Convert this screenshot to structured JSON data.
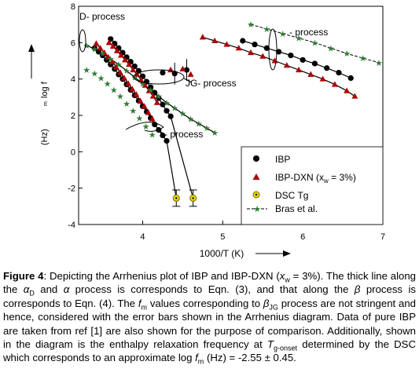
{
  "chart_data": {
    "type": "scatter",
    "xlabel": "1000/T (K)",
    "ylabel": "log f",
    "ylabel_superscript": "m",
    "yunit": "(Hz)",
    "xlim": [
      3.2,
      7.0
    ],
    "ylim": [
      -4,
      8
    ],
    "xticks": [
      "4",
      "5",
      "6",
      "7"
    ],
    "yticks": [
      "-4",
      "-2",
      "0",
      "2",
      "4",
      "6",
      "8"
    ],
    "grid": false,
    "legend_position": "bottom-right",
    "annotations": {
      "d_process": "D- process",
      "beta_process": "- process",
      "jg_process": "JG- process",
      "alpha_process": "- process"
    },
    "series": [
      {
        "name": "IBP",
        "marker": "circle",
        "color": "#000000",
        "points": [
          [
            3.4,
            5.7
          ],
          [
            3.45,
            5.5
          ],
          [
            3.5,
            5.3
          ],
          [
            3.55,
            5.05
          ],
          [
            3.6,
            4.8
          ],
          [
            3.65,
            4.55
          ],
          [
            3.7,
            4.25
          ],
          [
            3.75,
            4.0
          ],
          [
            3.8,
            3.7
          ],
          [
            3.85,
            3.4
          ],
          [
            3.9,
            3.1
          ],
          [
            3.95,
            2.8
          ],
          [
            4.0,
            2.5
          ],
          [
            4.05,
            2.2
          ],
          [
            4.1,
            1.85
          ],
          [
            4.15,
            1.5
          ],
          [
            4.2,
            1.2
          ],
          [
            4.25,
            0.9
          ],
          [
            4.3,
            0.6
          ],
          [
            3.6,
            6.2
          ],
          [
            3.65,
            5.95
          ],
          [
            3.7,
            5.7
          ],
          [
            3.75,
            5.45
          ],
          [
            3.8,
            5.2
          ],
          [
            3.85,
            4.95
          ],
          [
            3.9,
            4.7
          ],
          [
            3.95,
            4.45
          ],
          [
            4.0,
            4.15
          ],
          [
            4.05,
            3.85
          ],
          [
            4.1,
            3.55
          ],
          [
            4.15,
            3.25
          ],
          [
            4.2,
            2.95
          ],
          [
            4.25,
            2.6
          ],
          [
            4.3,
            2.25
          ],
          [
            4.35,
            1.95
          ],
          [
            4.25,
            4.35
          ],
          [
            4.4,
            4.3
          ],
          [
            4.55,
            4.5
          ],
          [
            5.25,
            6.1
          ],
          [
            5.4,
            5.9
          ],
          [
            5.55,
            5.7
          ],
          [
            5.7,
            5.5
          ],
          [
            5.85,
            5.3
          ],
          [
            6.0,
            5.05
          ],
          [
            6.15,
            4.85
          ],
          [
            6.3,
            4.6
          ],
          [
            6.45,
            4.35
          ],
          [
            6.6,
            4.05
          ]
        ]
      },
      {
        "name": "IBP-DXN",
        "legend_text": "IBP-DXN (x",
        "legend_sub": "w",
        "legend_suffix": " = 3%)",
        "marker": "triangle",
        "color": "#b00000",
        "points": [
          [
            3.42,
            5.95
          ],
          [
            3.47,
            5.7
          ],
          [
            3.52,
            5.45
          ],
          [
            3.57,
            5.2
          ],
          [
            3.62,
            4.95
          ],
          [
            3.67,
            4.65
          ],
          [
            3.72,
            4.35
          ],
          [
            3.77,
            4.05
          ],
          [
            3.82,
            3.75
          ],
          [
            3.87,
            3.45
          ],
          [
            3.92,
            3.15
          ],
          [
            3.97,
            2.8
          ],
          [
            4.02,
            2.5
          ],
          [
            4.07,
            2.15
          ],
          [
            4.12,
            1.8
          ],
          [
            3.58,
            6.0
          ],
          [
            3.63,
            5.8
          ],
          [
            3.68,
            5.55
          ],
          [
            3.73,
            5.3
          ],
          [
            3.78,
            5.05
          ],
          [
            3.83,
            4.8
          ],
          [
            3.88,
            4.5
          ],
          [
            3.93,
            4.25
          ],
          [
            3.98,
            3.95
          ],
          [
            4.03,
            3.65
          ],
          [
            4.08,
            3.35
          ],
          [
            4.13,
            3.05
          ],
          [
            4.18,
            2.7
          ],
          [
            4.35,
            4.5
          ],
          [
            4.5,
            4.55
          ],
          [
            4.6,
            4.25
          ],
          [
            4.75,
            6.3
          ],
          [
            4.9,
            6.1
          ],
          [
            5.05,
            5.9
          ],
          [
            5.2,
            5.7
          ],
          [
            5.35,
            5.45
          ],
          [
            5.5,
            5.25
          ],
          [
            5.65,
            5.0
          ],
          [
            5.8,
            4.75
          ],
          [
            5.95,
            4.5
          ],
          [
            6.1,
            4.25
          ],
          [
            6.25,
            4.0
          ],
          [
            6.4,
            3.7
          ],
          [
            6.55,
            3.35
          ],
          [
            6.65,
            3.05
          ]
        ]
      },
      {
        "name": "DSC Tg",
        "legend_text": "DSC Tg",
        "marker": "circle-open",
        "color": "#e8d800",
        "points": [
          [
            4.42,
            -2.55
          ],
          [
            4.63,
            -2.55
          ]
        ],
        "y_error": 0.45
      },
      {
        "name": "Bras et al.",
        "marker": "star",
        "color": "#2e7d32",
        "points": [
          [
            3.3,
            4.5
          ],
          [
            3.4,
            4.3
          ],
          [
            3.48,
            4.05
          ],
          [
            3.56,
            3.75
          ],
          [
            3.64,
            3.4
          ],
          [
            3.72,
            3.05
          ],
          [
            3.8,
            2.65
          ],
          [
            3.88,
            2.25
          ],
          [
            3.96,
            1.85
          ],
          [
            4.04,
            1.4
          ],
          [
            4.12,
            0.95
          ],
          [
            3.3,
            5.85
          ],
          [
            3.4,
            5.65
          ],
          [
            3.5,
            5.4
          ],
          [
            3.6,
            5.1
          ],
          [
            3.7,
            4.8
          ],
          [
            3.8,
            4.45
          ],
          [
            3.9,
            4.1
          ],
          [
            4.0,
            3.75
          ],
          [
            4.1,
            3.4
          ],
          [
            4.2,
            3.05
          ],
          [
            4.3,
            2.7
          ],
          [
            4.4,
            2.4
          ],
          [
            4.5,
            2.1
          ],
          [
            4.6,
            1.8
          ],
          [
            4.7,
            1.55
          ],
          [
            4.8,
            1.3
          ],
          [
            4.9,
            1.05
          ],
          [
            5.35,
            7.0
          ],
          [
            5.55,
            6.75
          ],
          [
            5.75,
            6.5
          ],
          [
            5.95,
            6.25
          ],
          [
            6.15,
            6.0
          ],
          [
            6.35,
            5.7
          ],
          [
            6.55,
            5.4
          ],
          [
            6.75,
            5.15
          ],
          [
            6.95,
            4.9
          ]
        ]
      }
    ]
  },
  "caption": {
    "label": "Figure 4",
    "t1": ": Depicting the Arrhenius plot of IBP and IBP-DXN (",
    "xw_var": "x",
    "xw_sub": "w",
    "t2": " = 3%). The thick line along the ",
    "alpha_d": "α",
    "alpha_d_sub": "D",
    "t3": " and ",
    "alpha": "α",
    "t4": " process is corresponds to Eqn. (3), and that along the ",
    "beta": "β",
    "t5": " process is corresponds to Eqn. (4). The ",
    "fm": "f",
    "fm_sub": "m",
    "t6": " values corresponding to ",
    "beta_jg": "β",
    "beta_jg_sub": "JG",
    "t7": " process are not stringent and hence, considered with the error bars shown in the Arrhenius diagram. Data of pure IBP are taken from ref [1] are also shown for the purpose of comparison. Additionally, shown in the diagram is the enthalpy relaxation frequency at ",
    "tg": "T",
    "tg_sub": "g-onset",
    "t8": " determined by the DSC which corresponds to an approximate log ",
    "fm2": "f",
    "fm2_sub": "m",
    "t9": " (Hz) = -2.55 ± 0.45."
  }
}
